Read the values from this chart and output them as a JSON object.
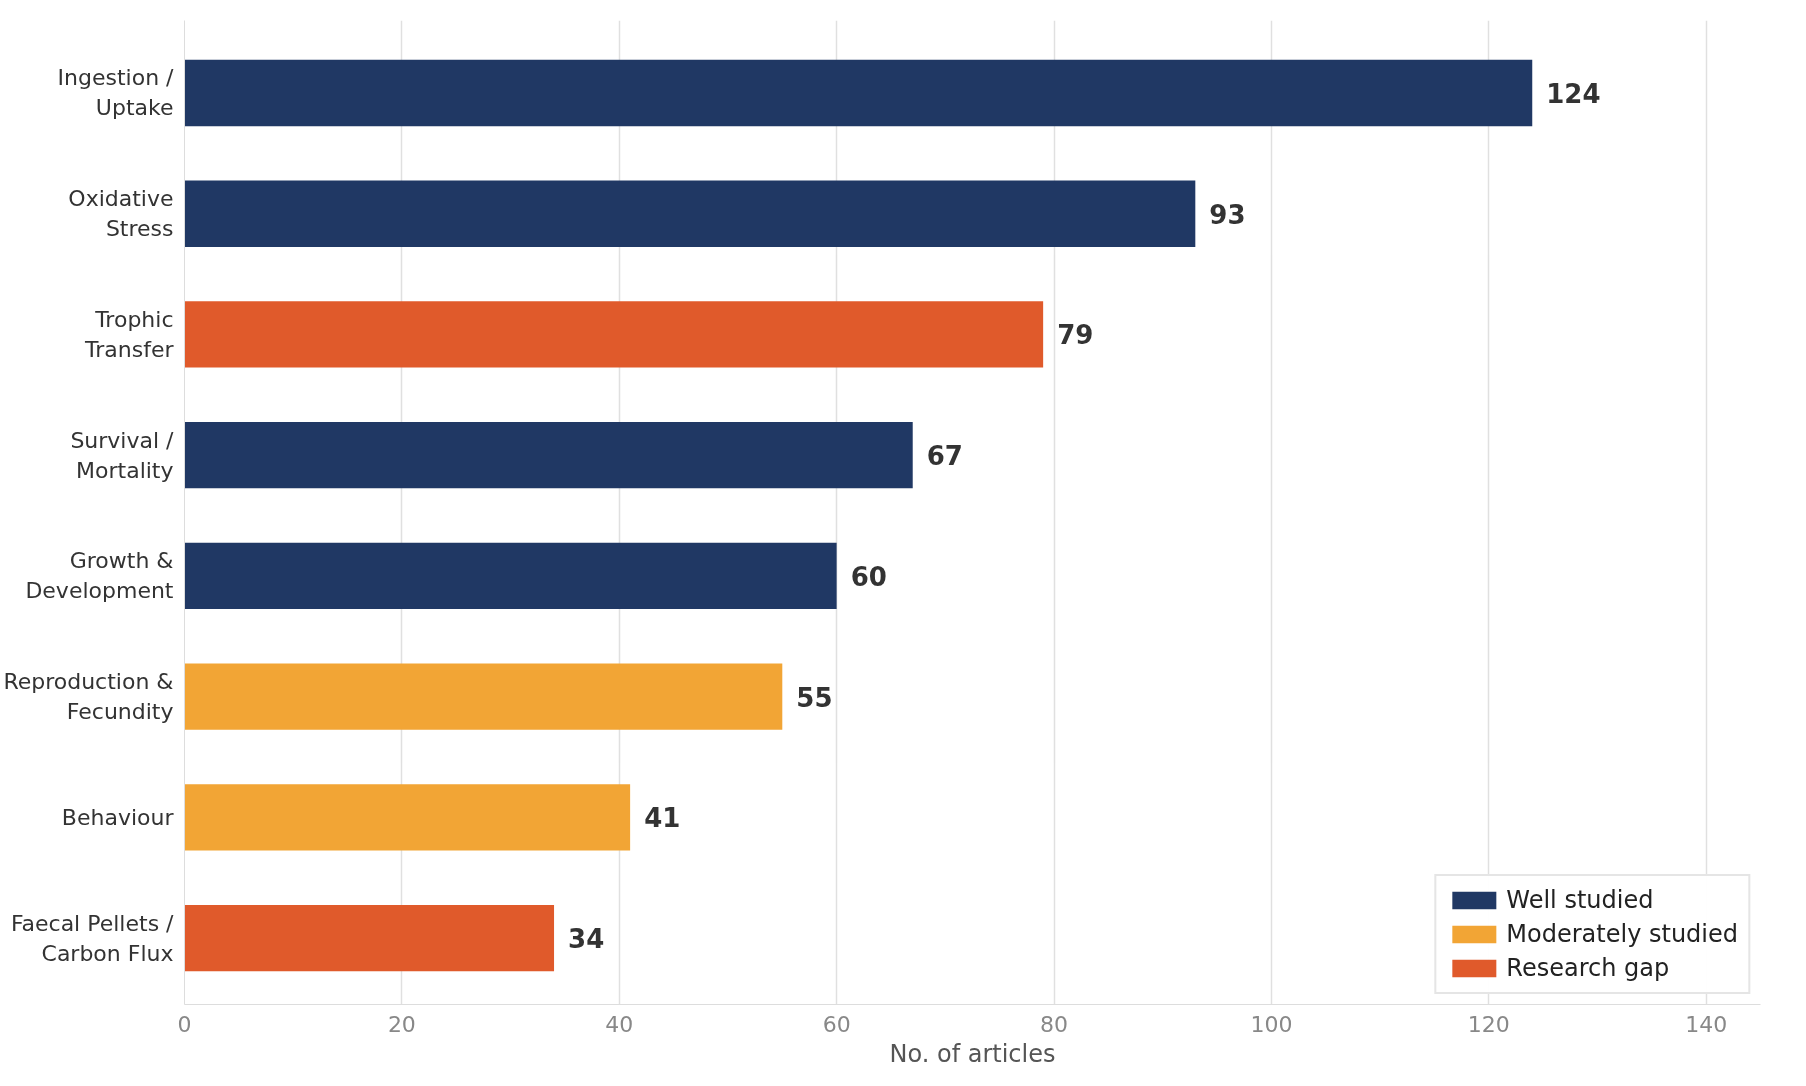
{
  "chart_data": {
    "type": "bar",
    "orientation": "horizontal",
    "xlabel": "No. of articles",
    "categories": [
      "Ingestion /\nUptake",
      "Oxidative\nStress",
      "Trophic\nTransfer",
      "Survival /\nMortality",
      "Growth &\nDevelopment",
      "Reproduction &\nFecundity",
      "Behaviour",
      "Faecal Pellets /\nCarbon Flux"
    ],
    "series": [
      {
        "name": "Well studied",
        "color": "#203864",
        "values": [
          124,
          93,
          null,
          67,
          60,
          null,
          null,
          null
        ]
      },
      {
        "name": "Moderately studied",
        "color": "#f2a535",
        "values": [
          null,
          null,
          null,
          null,
          null,
          55,
          41,
          null
        ]
      },
      {
        "name": "Research gap",
        "color": "#e05a2b",
        "values": [
          null,
          null,
          79,
          null,
          null,
          null,
          null,
          34
        ]
      }
    ],
    "xlim": [
      0,
      145
    ],
    "xticks": [
      0,
      20,
      40,
      60,
      80,
      100,
      120,
      140
    ],
    "grid": "x",
    "legend": "bottom right",
    "data_labels": true
  }
}
